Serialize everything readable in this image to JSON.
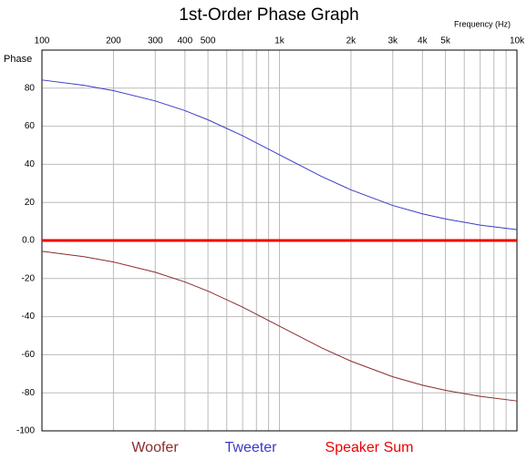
{
  "chart_data": {
    "type": "line",
    "title": "1st-Order Phase Graph",
    "x_label": "Frequency  (Hz)",
    "y_label": "Phase",
    "x": [
      100,
      150,
      200,
      300,
      400,
      500,
      700,
      1000,
      1500,
      2000,
      3000,
      4000,
      5000,
      7000,
      10000
    ],
    "series": [
      {
        "name": "Woofer",
        "color": "#8b2c2c",
        "width": 1,
        "values": [
          -5.7,
          -8.5,
          -11.3,
          -16.7,
          -21.8,
          -26.6,
          -35,
          -45,
          -56.3,
          -63.4,
          -71.6,
          -76,
          -78.7,
          -81.9,
          -84.3
        ]
      },
      {
        "name": "Tweeter",
        "color": "#3a3ac8",
        "width": 1,
        "values": [
          84.3,
          81.5,
          78.7,
          73.3,
          68.2,
          63.4,
          55,
          45,
          33.7,
          26.6,
          18.4,
          14,
          11.3,
          8.1,
          5.7
        ]
      },
      {
        "name": "Speaker Sum",
        "color": "#ee0000",
        "width": 3,
        "values": [
          0,
          0,
          0,
          0,
          0,
          0,
          0,
          0,
          0,
          0,
          0,
          0,
          0,
          0,
          0
        ]
      }
    ],
    "xscale": "log",
    "xlim": [
      100,
      10000
    ],
    "xticks": [
      100,
      200,
      300,
      400,
      500,
      {
        "value": 1000,
        "label": "1k"
      },
      {
        "value": 2000,
        "label": "2k"
      },
      {
        "value": 3000,
        "label": "3k"
      },
      {
        "value": 4000,
        "label": "4k"
      },
      {
        "value": 5000,
        "label": "5k"
      },
      {
        "value": 10000,
        "label": "10k"
      }
    ],
    "xminor": [
      600,
      700,
      800,
      900,
      6000,
      7000,
      8000,
      9000
    ],
    "ylim": [
      -100,
      100
    ],
    "yticks": [
      -100,
      -80,
      -60,
      -40,
      -20,
      {
        "value": 0,
        "label": "0.0"
      },
      20,
      40,
      60,
      80
    ],
    "grid": true,
    "legend": "bottom"
  }
}
